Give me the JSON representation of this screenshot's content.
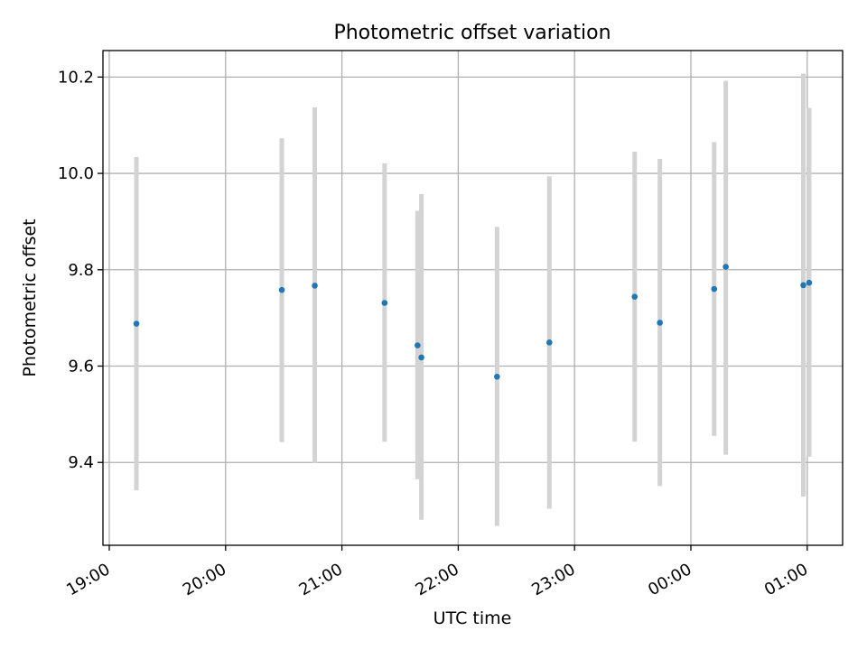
{
  "chart_data": {
    "type": "scatter",
    "title": "Photometric offset variation",
    "xlabel": "UTC time",
    "ylabel": "Photometric offset",
    "x_ticks": [
      "19:00",
      "20:00",
      "21:00",
      "22:00",
      "23:00",
      "00:00",
      "01:00"
    ],
    "y_ticks": [
      "9.4",
      "9.6",
      "9.8",
      "10.0",
      "10.2"
    ],
    "y_tick_values": [
      9.4,
      9.6,
      9.8,
      10.0,
      10.2
    ],
    "xlim_hours_utc": [
      "18:57",
      "01:19 (+1 day)"
    ],
    "ylim": [
      9.228,
      10.255
    ],
    "grid": true,
    "marker_color": "#1f77b4",
    "errorbar_color": "#d3d3d3",
    "points": [
      {
        "time": "19:14",
        "y": 9.688,
        "err_low": 9.342,
        "err_high": 10.034
      },
      {
        "time": "20:29",
        "y": 9.758,
        "err_low": 9.442,
        "err_high": 10.073
      },
      {
        "time": "20:46",
        "y": 9.767,
        "err_low": 9.399,
        "err_high": 10.137
      },
      {
        "time": "21:22",
        "y": 9.731,
        "err_low": 9.443,
        "err_high": 10.021
      },
      {
        "time": "21:39",
        "y": 9.643,
        "err_low": 9.365,
        "err_high": 9.922
      },
      {
        "time": "21:41",
        "y": 9.618,
        "err_low": 9.281,
        "err_high": 9.957
      },
      {
        "time": "22:20",
        "y": 9.578,
        "err_low": 9.268,
        "err_high": 9.889
      },
      {
        "time": "22:47",
        "y": 9.649,
        "err_low": 9.304,
        "err_high": 9.994
      },
      {
        "time": "23:31",
        "y": 9.744,
        "err_low": 9.443,
        "err_high": 10.045
      },
      {
        "time": "23:44",
        "y": 9.69,
        "err_low": 9.351,
        "err_high": 10.03
      },
      {
        "time": "00:12",
        "y": 9.76,
        "err_low": 9.455,
        "err_high": 10.065
      },
      {
        "time": "00:18",
        "y": 9.806,
        "err_low": 9.416,
        "err_high": 10.192
      },
      {
        "time": "00:58",
        "y": 9.768,
        "err_low": 9.329,
        "err_high": 10.207
      },
      {
        "time": "01:01",
        "y": 9.773,
        "err_low": 9.412,
        "err_high": 10.136
      }
    ]
  }
}
